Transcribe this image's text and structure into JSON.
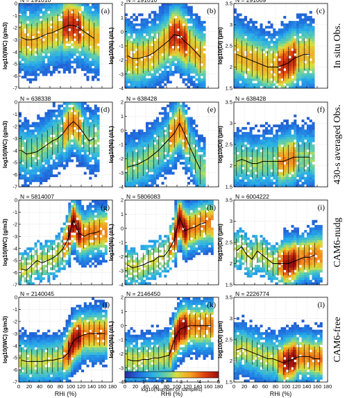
{
  "chart_data": {
    "type": "heatmap",
    "colorbar": {
      "label": "log10(Number of samples)",
      "ticks": [
        "0",
        "1",
        "2",
        "3",
        "4",
        "5"
      ],
      "range": [
        0,
        5
      ]
    },
    "rows": [
      {
        "label": "In situ Obs."
      },
      {
        "label": "430-s averaged Obs."
      },
      {
        "label": "CAM6-nudg"
      },
      {
        "label": "CAM6-free"
      }
    ],
    "columns": [
      {
        "ylabel": "log10(IWC) (g/m3)",
        "yticks": [
          "-7",
          "-6",
          "-5",
          "-4",
          "-3",
          "-2",
          "-1",
          "0"
        ],
        "ylim": [
          -7,
          0
        ]
      },
      {
        "ylabel": "log10(Ni) (#/L)",
        "yticks": [
          "-4",
          "-3",
          "-2",
          "-1",
          "0",
          "1",
          "2"
        ],
        "ylim": [
          -4,
          2
        ]
      },
      {
        "ylabel": "log10(Di) (μm)",
        "yticks": [
          "1.5",
          "2",
          "2.5",
          "3",
          "3.5"
        ],
        "ylim": [
          1.5,
          3.5
        ]
      }
    ],
    "xlabel": "RHi (%)",
    "xticks": [
      "0",
      "20",
      "40",
      "60",
      "80",
      "100",
      "120",
      "140",
      "160",
      "180"
    ],
    "xlim": [
      0,
      180
    ],
    "panels": [
      {
        "letter": "(a)",
        "n": "N = 291010",
        "row": 0,
        "col": 0,
        "mean": [
          [
            5,
            -2.8
          ],
          [
            15,
            -3.0
          ],
          [
            25,
            -3.0
          ],
          [
            35,
            -2.9
          ],
          [
            45,
            -2.7
          ],
          [
            55,
            -2.5
          ],
          [
            65,
            -2.4
          ],
          [
            75,
            -2.2
          ],
          [
            85,
            -2.0
          ],
          [
            95,
            -1.8
          ],
          [
            105,
            -1.8
          ],
          [
            115,
            -2.0
          ],
          [
            125,
            -2.3
          ],
          [
            135,
            -2.6
          ],
          [
            145,
            -2.9
          ]
        ]
      },
      {
        "letter": "(b)",
        "n": "N = 291010",
        "row": 0,
        "col": 1,
        "mean": [
          [
            5,
            -1.7
          ],
          [
            15,
            -1.9
          ],
          [
            25,
            -1.9
          ],
          [
            35,
            -1.8
          ],
          [
            45,
            -1.7
          ],
          [
            55,
            -1.5
          ],
          [
            65,
            -1.2
          ],
          [
            75,
            -0.9
          ],
          [
            85,
            -0.6
          ],
          [
            95,
            -0.2
          ],
          [
            105,
            -0.3
          ],
          [
            115,
            -0.7
          ],
          [
            125,
            -1.0
          ],
          [
            135,
            -1.4
          ],
          [
            145,
            -1.8
          ]
        ]
      },
      {
        "letter": "(c)",
        "n": "N = 291009",
        "row": 0,
        "col": 2,
        "mean": [
          [
            5,
            2.3
          ],
          [
            15,
            2.25
          ],
          [
            25,
            2.2
          ],
          [
            35,
            2.15
          ],
          [
            45,
            2.1
          ],
          [
            55,
            2.05
          ],
          [
            65,
            2.0
          ],
          [
            75,
            2.0
          ],
          [
            85,
            2.0
          ],
          [
            95,
            2.05
          ],
          [
            105,
            2.1
          ],
          [
            115,
            2.2
          ],
          [
            125,
            2.25
          ],
          [
            135,
            2.3
          ],
          [
            145,
            2.3
          ]
        ]
      },
      {
        "letter": "(d)",
        "n": "N = 638338",
        "row": 1,
        "col": 0,
        "mean": [
          [
            5,
            -4.0
          ],
          [
            15,
            -4.3
          ],
          [
            25,
            -4.2
          ],
          [
            35,
            -4.1
          ],
          [
            45,
            -3.8
          ],
          [
            55,
            -3.5
          ],
          [
            65,
            -3.2
          ],
          [
            75,
            -3.0
          ],
          [
            85,
            -2.6
          ],
          [
            95,
            -2.0
          ],
          [
            105,
            -1.6
          ],
          [
            115,
            -2.0
          ],
          [
            125,
            -2.6
          ],
          [
            135,
            -3.2
          ],
          [
            145,
            -3.0
          ]
        ]
      },
      {
        "letter": "(e)",
        "n": "N = 638428",
        "row": 1,
        "col": 1,
        "mean": [
          [
            5,
            -2.6
          ],
          [
            15,
            -2.5
          ],
          [
            25,
            -2.4
          ],
          [
            35,
            -2.2
          ],
          [
            45,
            -2.0
          ],
          [
            55,
            -1.7
          ],
          [
            65,
            -1.4
          ],
          [
            75,
            -1.0
          ],
          [
            85,
            -0.6
          ],
          [
            95,
            -0.2
          ],
          [
            105,
            0.5
          ],
          [
            115,
            -0.3
          ],
          [
            125,
            -1.2
          ],
          [
            135,
            -2.0
          ],
          [
            145,
            -2.8
          ]
        ]
      },
      {
        "letter": "(f)",
        "n": "N = 638428",
        "row": 1,
        "col": 2,
        "mean": [
          [
            5,
            2.1
          ],
          [
            15,
            2.15
          ],
          [
            25,
            2.1
          ],
          [
            35,
            2.05
          ],
          [
            45,
            2.05
          ],
          [
            55,
            2.1
          ],
          [
            65,
            2.1
          ],
          [
            75,
            2.1
          ],
          [
            85,
            2.1
          ],
          [
            95,
            2.1
          ],
          [
            105,
            2.15
          ],
          [
            115,
            2.2
          ],
          [
            125,
            2.2
          ],
          [
            135,
            2.2
          ],
          [
            145,
            2.2
          ]
        ]
      },
      {
        "letter": "(g)",
        "n": "N = 5814007",
        "row": 2,
        "col": 0,
        "mean": [
          [
            5,
            -5.7
          ],
          [
            15,
            -5.8
          ],
          [
            25,
            -5.4
          ],
          [
            35,
            -5.0
          ],
          [
            45,
            -5.2
          ],
          [
            55,
            -5.0
          ],
          [
            65,
            -4.8
          ],
          [
            75,
            -4.5
          ],
          [
            85,
            -4.0
          ],
          [
            95,
            -3.2
          ],
          [
            105,
            -1.6
          ],
          [
            115,
            -2.7
          ],
          [
            125,
            -3.0
          ],
          [
            135,
            -2.8
          ],
          [
            145,
            -2.7
          ],
          [
            155,
            -2.6
          ]
        ]
      },
      {
        "letter": "(h)",
        "n": "N = 5806083",
        "row": 2,
        "col": 1,
        "mean": [
          [
            5,
            -2.6
          ],
          [
            15,
            -2.8
          ],
          [
            25,
            -2.7
          ],
          [
            35,
            -2.6
          ],
          [
            45,
            -2.4
          ],
          [
            55,
            -2.3
          ],
          [
            65,
            -2.0
          ],
          [
            75,
            -2.0
          ],
          [
            85,
            -1.5
          ],
          [
            95,
            -0.8
          ],
          [
            105,
            0.8
          ],
          [
            115,
            -0.2
          ],
          [
            125,
            0.0
          ],
          [
            135,
            0.1
          ],
          [
            145,
            0.3
          ],
          [
            155,
            0.4
          ]
        ]
      },
      {
        "letter": "(i)",
        "n": "N = 6004222",
        "row": 2,
        "col": 2,
        "mean": [
          [
            5,
            2.3
          ],
          [
            15,
            2.4
          ],
          [
            25,
            2.2
          ],
          [
            35,
            2.1
          ],
          [
            45,
            2.3
          ],
          [
            55,
            2.2
          ],
          [
            65,
            2.1
          ],
          [
            75,
            2.0
          ],
          [
            85,
            2.0
          ],
          [
            95,
            2.0
          ],
          [
            105,
            2.0
          ],
          [
            115,
            2.05
          ],
          [
            125,
            2.1
          ],
          [
            135,
            2.15
          ],
          [
            145,
            2.15
          ],
          [
            155,
            2.2
          ]
        ]
      },
      {
        "letter": "(j)",
        "n": "N = 2140045",
        "row": 3,
        "col": 0,
        "mean": [
          [
            5,
            -5.2
          ],
          [
            15,
            -5.3
          ],
          [
            25,
            -5.3
          ],
          [
            35,
            -5.3
          ],
          [
            45,
            -5.3
          ],
          [
            55,
            -5.2
          ],
          [
            65,
            -5.2
          ],
          [
            75,
            -5.1
          ],
          [
            85,
            -5.0
          ],
          [
            95,
            -4.6
          ],
          [
            105,
            -3.6
          ],
          [
            115,
            -3.3
          ],
          [
            125,
            -3.1
          ],
          [
            135,
            -3.0
          ],
          [
            145,
            -3.0
          ],
          [
            155,
            -3.0
          ],
          [
            165,
            -3.0
          ]
        ]
      },
      {
        "letter": "(k)",
        "n": "N = 2146450",
        "row": 3,
        "col": 1,
        "mean": [
          [
            5,
            -2.4
          ],
          [
            15,
            -2.5
          ],
          [
            25,
            -2.5
          ],
          [
            35,
            -2.4
          ],
          [
            45,
            -2.4
          ],
          [
            55,
            -2.3
          ],
          [
            65,
            -2.3
          ],
          [
            75,
            -2.2
          ],
          [
            85,
            -2.1
          ],
          [
            95,
            -1.0
          ],
          [
            105,
            -0.3
          ],
          [
            115,
            -0.1
          ],
          [
            125,
            0.0
          ],
          [
            135,
            0.0
          ],
          [
            145,
            0.0
          ],
          [
            155,
            0.0
          ],
          [
            165,
            0.0
          ]
        ]
      },
      {
        "letter": "(l)",
        "n": "N = 2226774",
        "row": 3,
        "col": 2,
        "mean": [
          [
            5,
            2.25
          ],
          [
            15,
            2.3
          ],
          [
            25,
            2.25
          ],
          [
            35,
            2.2
          ],
          [
            45,
            2.15
          ],
          [
            55,
            2.1
          ],
          [
            65,
            2.05
          ],
          [
            75,
            2.05
          ],
          [
            85,
            2.0
          ],
          [
            95,
            1.95
          ],
          [
            105,
            2.0
          ],
          [
            115,
            2.05
          ],
          [
            125,
            2.1
          ],
          [
            135,
            2.1
          ],
          [
            145,
            2.1
          ],
          [
            155,
            2.05
          ],
          [
            165,
            2.05
          ]
        ]
      }
    ]
  }
}
